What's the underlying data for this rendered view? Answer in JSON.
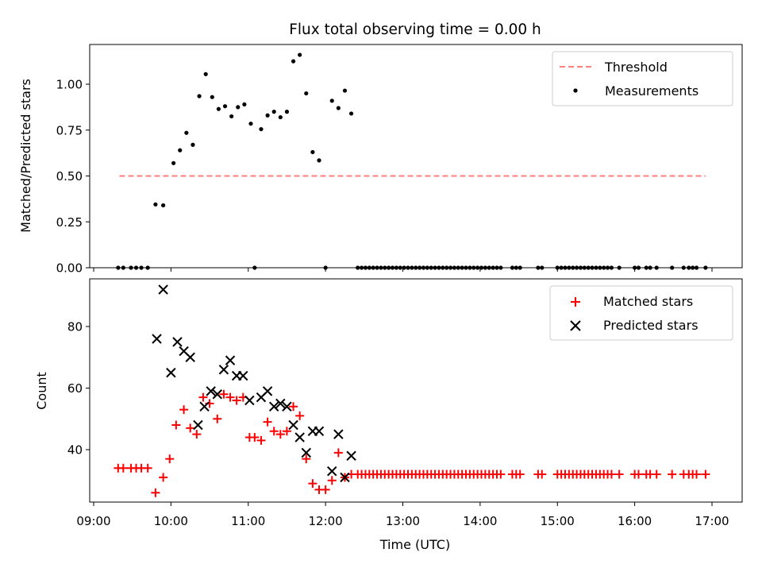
{
  "title": "Flux total observing time = 0.00 h",
  "colors": {
    "threshold": "#ff7f7f",
    "measurement": "#000000",
    "matched": "#ff0000",
    "predicted": "#000000",
    "axis": "#000000"
  },
  "chart_data": [
    {
      "type": "scatter",
      "title": "Flux total observing time = 0.00 h",
      "xlabel": "",
      "ylabel": "Matched/Predicted stars",
      "ylim": [
        0,
        1.22
      ],
      "yticks": [
        "0.00",
        "0.25",
        "0.50",
        "0.75",
        "1.00"
      ],
      "legend_position": "upper-right",
      "grid": false,
      "threshold": {
        "name": "Threshold",
        "style": "dashed",
        "value": 0.5,
        "x_range": [
          "09:20",
          "16:55"
        ]
      },
      "series": [
        {
          "name": "Measurements",
          "marker": "dot",
          "points": [
            [
              "09:19",
              0
            ],
            [
              "09:23",
              0
            ],
            [
              "09:29",
              0
            ],
            [
              "09:33",
              0
            ],
            [
              "09:37",
              0
            ],
            [
              "09:42",
              0
            ],
            [
              "09:48",
              0.345
            ],
            [
              "09:54",
              0.34
            ],
            [
              "10:02",
              0.57
            ],
            [
              "10:07",
              0.64
            ],
            [
              "10:12",
              0.735
            ],
            [
              "10:17",
              0.67
            ],
            [
              "10:22",
              0.935
            ],
            [
              "10:27",
              1.055
            ],
            [
              "10:32",
              0.93
            ],
            [
              "10:37",
              0.865
            ],
            [
              "10:42",
              0.88
            ],
            [
              "10:47",
              0.825
            ],
            [
              "10:52",
              0.875
            ],
            [
              "10:57",
              0.89
            ],
            [
              "11:02",
              0.785
            ],
            [
              "11:05",
              0
            ],
            [
              "11:10",
              0.755
            ],
            [
              "11:15",
              0.83
            ],
            [
              "11:20",
              0.85
            ],
            [
              "11:25",
              0.82
            ],
            [
              "11:30",
              0.85
            ],
            [
              "11:35",
              1.125
            ],
            [
              "11:40",
              1.16
            ],
            [
              "11:45",
              0.95
            ],
            [
              "11:50",
              0.63
            ],
            [
              "11:55",
              0.585
            ],
            [
              "12:00",
              0
            ],
            [
              "12:05",
              0.91
            ],
            [
              "12:10",
              0.87
            ],
            [
              "12:15",
              0.965
            ],
            [
              "12:20",
              0.84
            ],
            [
              "12:25",
              0
            ],
            [
              "12:28",
              0
            ],
            [
              "12:31",
              0
            ],
            [
              "12:34",
              0
            ],
            [
              "12:37",
              0
            ],
            [
              "12:40",
              0
            ],
            [
              "12:43",
              0
            ],
            [
              "12:46",
              0
            ],
            [
              "12:49",
              0
            ],
            [
              "12:52",
              0
            ],
            [
              "12:55",
              0
            ],
            [
              "12:58",
              0
            ],
            [
              "13:01",
              0
            ],
            [
              "13:04",
              0
            ],
            [
              "13:07",
              0
            ],
            [
              "13:10",
              0
            ],
            [
              "13:13",
              0
            ],
            [
              "13:16",
              0
            ],
            [
              "13:19",
              0
            ],
            [
              "13:22",
              0
            ],
            [
              "13:25",
              0
            ],
            [
              "13:28",
              0
            ],
            [
              "13:31",
              0
            ],
            [
              "13:34",
              0
            ],
            [
              "13:37",
              0
            ],
            [
              "13:40",
              0
            ],
            [
              "13:43",
              0
            ],
            [
              "13:46",
              0
            ],
            [
              "13:49",
              0
            ],
            [
              "13:52",
              0
            ],
            [
              "13:55",
              0
            ],
            [
              "13:58",
              0
            ],
            [
              "14:01",
              0
            ],
            [
              "14:04",
              0
            ],
            [
              "14:07",
              0
            ],
            [
              "14:10",
              0
            ],
            [
              "14:13",
              0
            ],
            [
              "14:16",
              0
            ],
            [
              "14:25",
              0
            ],
            [
              "14:28",
              0
            ],
            [
              "14:31",
              0
            ],
            [
              "14:45",
              0
            ],
            [
              "14:48",
              0
            ],
            [
              "15:00",
              0
            ],
            [
              "15:03",
              0
            ],
            [
              "15:06",
              0
            ],
            [
              "15:09",
              0
            ],
            [
              "15:12",
              0
            ],
            [
              "15:15",
              0
            ],
            [
              "15:18",
              0
            ],
            [
              "15:21",
              0
            ],
            [
              "15:24",
              0
            ],
            [
              "15:27",
              0
            ],
            [
              "15:30",
              0
            ],
            [
              "15:33",
              0
            ],
            [
              "15:36",
              0
            ],
            [
              "15:39",
              0
            ],
            [
              "15:42",
              0
            ],
            [
              "15:48",
              0
            ],
            [
              "16:00",
              0
            ],
            [
              "16:03",
              0
            ],
            [
              "16:09",
              0
            ],
            [
              "16:12",
              0
            ],
            [
              "16:17",
              0
            ],
            [
              "16:29",
              0
            ],
            [
              "16:38",
              0
            ],
            [
              "16:42",
              0
            ],
            [
              "16:45",
              0
            ],
            [
              "16:48",
              0
            ],
            [
              "16:55",
              0
            ]
          ]
        }
      ]
    },
    {
      "type": "scatter",
      "xlabel": "Time (UTC)",
      "ylabel": "Count",
      "ylim": [
        23,
        95
      ],
      "yticks": [
        "40",
        "60",
        "80"
      ],
      "xticks": [
        "09:00",
        "10:00",
        "11:00",
        "12:00",
        "13:00",
        "14:00",
        "15:00",
        "16:00",
        "17:00"
      ],
      "legend_position": "upper-right",
      "grid": false,
      "series": [
        {
          "name": "Matched stars",
          "marker": "plus",
          "points": [
            [
              "09:19",
              34
            ],
            [
              "09:23",
              34
            ],
            [
              "09:29",
              34
            ],
            [
              "09:33",
              34
            ],
            [
              "09:37",
              34
            ],
            [
              "09:42",
              34
            ],
            [
              "09:48",
              26
            ],
            [
              "09:54",
              31
            ],
            [
              "09:59",
              37
            ],
            [
              "10:04",
              48
            ],
            [
              "10:10",
              53
            ],
            [
              "10:15",
              47
            ],
            [
              "10:20",
              45
            ],
            [
              "10:25",
              57
            ],
            [
              "10:30",
              55
            ],
            [
              "10:36",
              50
            ],
            [
              "10:41",
              58
            ],
            [
              "10:46",
              57
            ],
            [
              "10:51",
              56
            ],
            [
              "10:56",
              57
            ],
            [
              "11:01",
              44
            ],
            [
              "11:05",
              44
            ],
            [
              "11:10",
              43
            ],
            [
              "11:15",
              49
            ],
            [
              "11:20",
              46
            ],
            [
              "11:25",
              45
            ],
            [
              "11:30",
              46
            ],
            [
              "11:35",
              54
            ],
            [
              "11:40",
              51
            ],
            [
              "11:45",
              37
            ],
            [
              "11:50",
              29
            ],
            [
              "11:55",
              27
            ],
            [
              "12:00",
              27
            ],
            [
              "12:05",
              30
            ],
            [
              "12:10",
              39
            ],
            [
              "12:15",
              31
            ],
            [
              "12:20",
              32
            ],
            [
              "12:25",
              32
            ],
            [
              "12:28",
              32
            ],
            [
              "12:31",
              32
            ],
            [
              "12:34",
              32
            ],
            [
              "12:37",
              32
            ],
            [
              "12:40",
              32
            ],
            [
              "12:43",
              32
            ],
            [
              "12:46",
              32
            ],
            [
              "12:49",
              32
            ],
            [
              "12:52",
              32
            ],
            [
              "12:55",
              32
            ],
            [
              "12:58",
              32
            ],
            [
              "13:01",
              32
            ],
            [
              "13:04",
              32
            ],
            [
              "13:07",
              32
            ],
            [
              "13:10",
              32
            ],
            [
              "13:13",
              32
            ],
            [
              "13:16",
              32
            ],
            [
              "13:19",
              32
            ],
            [
              "13:22",
              32
            ],
            [
              "13:25",
              32
            ],
            [
              "13:28",
              32
            ],
            [
              "13:31",
              32
            ],
            [
              "13:34",
              32
            ],
            [
              "13:37",
              32
            ],
            [
              "13:40",
              32
            ],
            [
              "13:43",
              32
            ],
            [
              "13:46",
              32
            ],
            [
              "13:49",
              32
            ],
            [
              "13:52",
              32
            ],
            [
              "13:55",
              32
            ],
            [
              "13:58",
              32
            ],
            [
              "14:01",
              32
            ],
            [
              "14:04",
              32
            ],
            [
              "14:07",
              32
            ],
            [
              "14:10",
              32
            ],
            [
              "14:13",
              32
            ],
            [
              "14:16",
              32
            ],
            [
              "14:25",
              32
            ],
            [
              "14:28",
              32
            ],
            [
              "14:31",
              32
            ],
            [
              "14:45",
              32
            ],
            [
              "14:48",
              32
            ],
            [
              "15:00",
              32
            ],
            [
              "15:03",
              32
            ],
            [
              "15:06",
              32
            ],
            [
              "15:09",
              32
            ],
            [
              "15:12",
              32
            ],
            [
              "15:15",
              32
            ],
            [
              "15:18",
              32
            ],
            [
              "15:21",
              32
            ],
            [
              "15:24",
              32
            ],
            [
              "15:27",
              32
            ],
            [
              "15:30",
              32
            ],
            [
              "15:33",
              32
            ],
            [
              "15:36",
              32
            ],
            [
              "15:39",
              32
            ],
            [
              "15:42",
              32
            ],
            [
              "15:48",
              32
            ],
            [
              "16:00",
              32
            ],
            [
              "16:03",
              32
            ],
            [
              "16:09",
              32
            ],
            [
              "16:12",
              32
            ],
            [
              "16:17",
              32
            ],
            [
              "16:29",
              32
            ],
            [
              "16:38",
              32
            ],
            [
              "16:42",
              32
            ],
            [
              "16:45",
              32
            ],
            [
              "16:48",
              32
            ],
            [
              "16:55",
              32
            ]
          ]
        },
        {
          "name": "Predicted stars",
          "marker": "x",
          "points": [
            [
              "09:49",
              76
            ],
            [
              "09:54",
              92
            ],
            [
              "10:00",
              65
            ],
            [
              "10:05",
              75
            ],
            [
              "10:10",
              72
            ],
            [
              "10:15",
              70
            ],
            [
              "10:21",
              48
            ],
            [
              "10:26",
              54
            ],
            [
              "10:31",
              59
            ],
            [
              "10:36",
              58
            ],
            [
              "10:41",
              66
            ],
            [
              "10:46",
              69
            ],
            [
              "10:51",
              64
            ],
            [
              "10:56",
              64
            ],
            [
              "11:01",
              56
            ],
            [
              "11:10",
              57
            ],
            [
              "11:15",
              59
            ],
            [
              "11:20",
              54
            ],
            [
              "11:25",
              55
            ],
            [
              "11:30",
              54
            ],
            [
              "11:35",
              48
            ],
            [
              "11:40",
              44
            ],
            [
              "11:45",
              39
            ],
            [
              "11:50",
              46
            ],
            [
              "11:55",
              46
            ],
            [
              "12:05",
              33
            ],
            [
              "12:10",
              45
            ],
            [
              "12:15",
              31
            ],
            [
              "12:20",
              38
            ]
          ]
        }
      ]
    }
  ]
}
